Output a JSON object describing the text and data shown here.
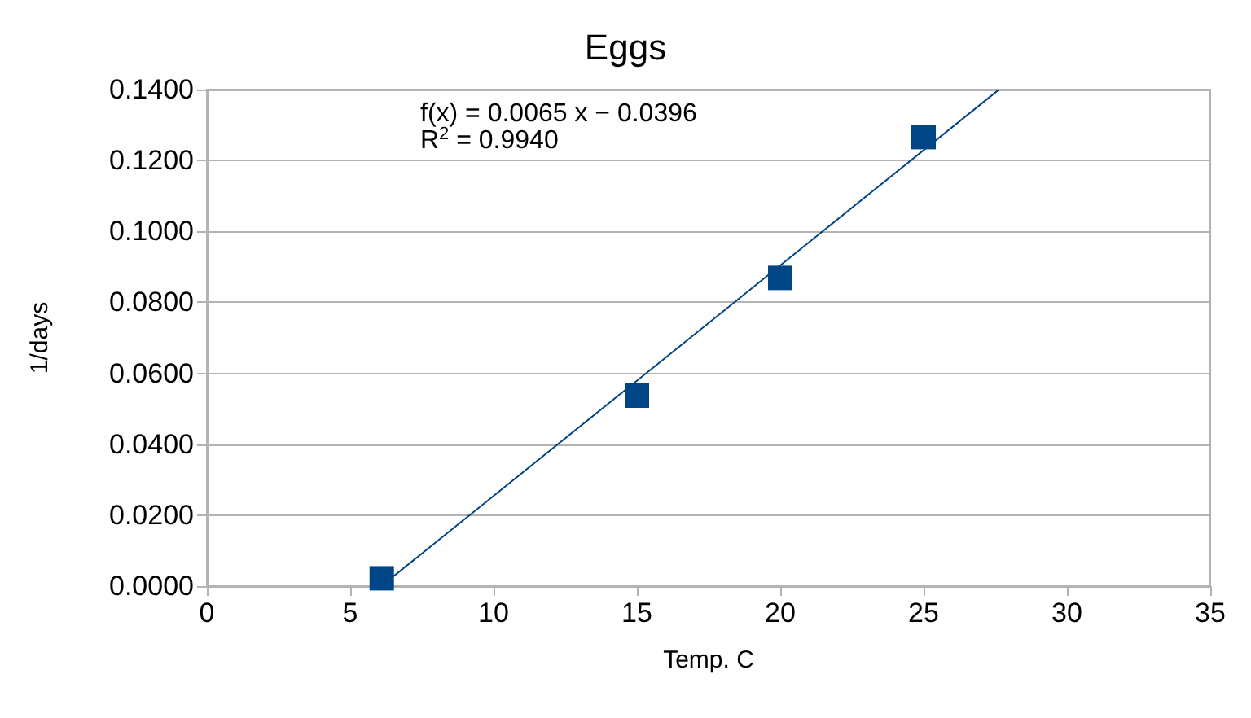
{
  "chart_data": {
    "type": "scatter",
    "title": "Eggs",
    "xlabel": "Temp. C",
    "ylabel": "1/days",
    "series": [
      {
        "color": "#004586",
        "x": [
          6.1,
          15,
          20,
          25
        ],
        "values": [
          0.0022,
          0.0537,
          0.0869,
          0.1266
        ],
        "marker": "square"
      },
      {
        "type": "line",
        "color": "#004586",
        "x": [
          6.1,
          27.6
        ],
        "values": [
          0.0001,
          0.1398
        ],
        "marker": "none",
        "line_style": "solid"
      }
    ],
    "annotations": [
      "f(x) = 0.0065 x − 0.0396",
      "R$^{2}$ = 0.9940"
    ],
    "xlim": [
      0,
      35
    ],
    "xticks": [
      0,
      5,
      10,
      15,
      20,
      25,
      30,
      35
    ],
    "ylim": [
      0,
      0.14
    ],
    "yticks": [
      {
        "value": 0,
        "label": "0.0000"
      },
      {
        "value": 0.02,
        "label": "0.0200"
      },
      {
        "value": 0.04,
        "label": "0.0400"
      },
      {
        "value": 0.06,
        "label": "0.0600"
      },
      {
        "value": 0.08,
        "label": "0.0800"
      },
      {
        "value": 0.1,
        "label": "0.1000"
      },
      {
        "value": 0.12,
        "label": "0.1200"
      },
      {
        "value": 0.14,
        "label": "0.1400"
      }
    ],
    "grid": "y"
  }
}
